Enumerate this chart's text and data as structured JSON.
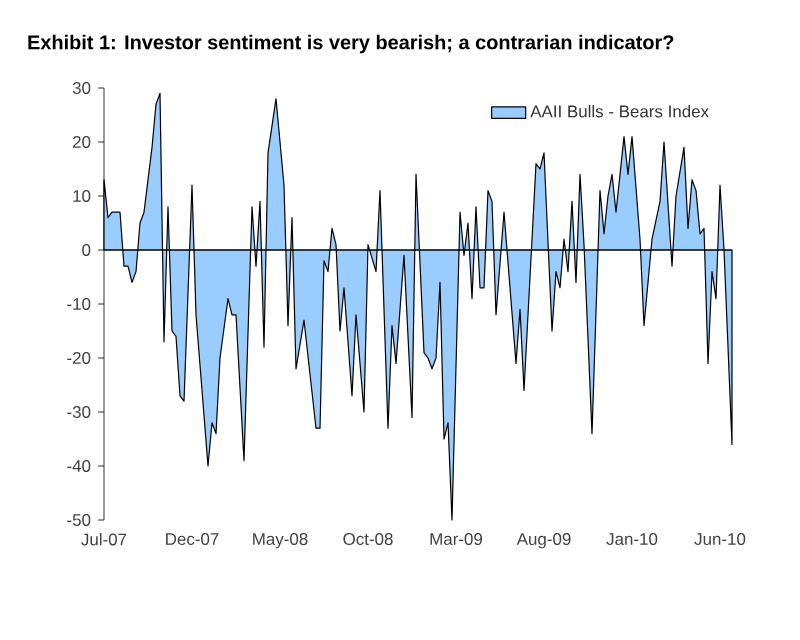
{
  "chart_data": {
    "type": "area",
    "title": "Exhibit 1: Investor sentiment is very bearish; a contrarian indicator?",
    "x": [
      "2007-07-05",
      "2007-07-12",
      "2007-07-19",
      "2007-07-26",
      "2007-08-02",
      "2007-08-09",
      "2007-08-16",
      "2007-08-23",
      "2007-08-30",
      "2007-09-06",
      "2007-09-13",
      "2007-09-27",
      "2007-10-04",
      "2007-10-11",
      "2007-10-18",
      "2007-10-25",
      "2007-11-01",
      "2007-11-08",
      "2007-11-15",
      "2007-11-22",
      "2007-12-06",
      "2007-12-13",
      "2008-01-03",
      "2008-01-10",
      "2008-01-17",
      "2008-01-24",
      "2008-02-07",
      "2008-02-14",
      "2008-02-21",
      "2008-03-06",
      "2008-03-20",
      "2008-03-27",
      "2008-04-03",
      "2008-04-10",
      "2008-04-17",
      "2008-05-01",
      "2008-05-08",
      "2008-05-15",
      "2008-05-22",
      "2008-05-29",
      "2008-06-05",
      "2008-06-19",
      "2008-07-10",
      "2008-07-17",
      "2008-07-24",
      "2008-07-31",
      "2008-08-07",
      "2008-08-14",
      "2008-08-21",
      "2008-08-28",
      "2008-09-11",
      "2008-09-18",
      "2008-10-02",
      "2008-10-09",
      "2008-10-23",
      "2008-10-30",
      "2008-11-13",
      "2008-11-20",
      "2008-11-27",
      "2008-12-11",
      "2008-12-25",
      "2009-01-01",
      "2009-01-15",
      "2009-01-22",
      "2009-01-29",
      "2009-02-05",
      "2009-02-12",
      "2009-02-19",
      "2009-02-26",
      "2009-03-05",
      "2009-03-19",
      "2009-03-26",
      "2009-04-02",
      "2009-04-09",
      "2009-04-16",
      "2009-04-23",
      "2009-04-30",
      "2009-05-07",
      "2009-05-14",
      "2009-05-21",
      "2009-06-04",
      "2009-06-25",
      "2009-07-02",
      "2009-07-09",
      "2009-07-30",
      "2009-08-06",
      "2009-08-13",
      "2009-08-27",
      "2009-09-03",
      "2009-09-10",
      "2009-09-17",
      "2009-09-24",
      "2009-10-01",
      "2009-10-08",
      "2009-10-15",
      "2009-10-22",
      "2009-11-05",
      "2009-11-19",
      "2009-11-26",
      "2009-12-03",
      "2009-12-10",
      "2009-12-17",
      "2009-12-31",
      "2010-01-07",
      "2010-01-14",
      "2010-01-28",
      "2010-02-04",
      "2010-02-18",
      "2010-03-04",
      "2010-03-11",
      "2010-03-25",
      "2010-04-01",
      "2010-04-15",
      "2010-04-22",
      "2010-04-29",
      "2010-05-06",
      "2010-05-13",
      "2010-05-20",
      "2010-05-27",
      "2010-06-03",
      "2010-06-10",
      "2010-06-17",
      "2010-06-24",
      "2010-07-08"
    ],
    "series": [
      {
        "name": "AAII Bulls - Bears Index",
        "color": "#99ccff",
        "values": [
          13,
          6,
          7,
          7,
          7,
          -3,
          -3,
          -6,
          -4,
          5,
          7,
          19,
          27,
          29,
          -17,
          8,
          -15,
          -16,
          -27,
          -28,
          12,
          -12,
          -40,
          -32,
          -34,
          -20,
          -9,
          -12,
          -12,
          -39,
          8,
          -3,
          9,
          -18,
          18,
          28,
          20,
          12,
          -14,
          6,
          -22,
          -13,
          -33,
          -33,
          -2,
          -4,
          4,
          1,
          -15,
          -7,
          -27,
          -12,
          -30,
          1,
          -4,
          11,
          -33,
          -14,
          -21,
          -1,
          -31,
          14,
          -19,
          -20,
          -22,
          -20,
          -6,
          -35,
          -32,
          -50,
          7,
          -1,
          5,
          -9,
          8,
          -7,
          -7,
          11,
          9,
          -12,
          7,
          -21,
          -11,
          -26,
          16,
          15,
          18,
          -15,
          -4,
          -7,
          2,
          -4,
          9,
          -6,
          14,
          1,
          -34,
          11,
          3,
          10,
          14,
          7,
          21,
          14,
          21,
          2,
          -14,
          2,
          9,
          20,
          -3,
          10,
          19,
          4,
          13,
          11,
          3,
          4,
          -21,
          -4,
          -9,
          12,
          0,
          -36
        ]
      }
    ],
    "xlim": [
      "2007-07-05",
      "2010-07-08"
    ],
    "xticks": [
      {
        "value": "2007-07-05",
        "label": "Jul-07"
      },
      {
        "value": "2007-12-06",
        "label": "Dec-07"
      },
      {
        "value": "2008-05-08",
        "label": "May-08"
      },
      {
        "value": "2008-10-09",
        "label": "Oct-08"
      },
      {
        "value": "2009-03-12",
        "label": "Mar-09"
      },
      {
        "value": "2009-08-13",
        "label": "Aug-09"
      },
      {
        "value": "2010-01-14",
        "label": "Jan-10"
      },
      {
        "value": "2010-06-17",
        "label": "Jun-10"
      }
    ],
    "ylim": [
      -50,
      30
    ],
    "yticks": [
      -50,
      -40,
      -30,
      -20,
      -10,
      0,
      10,
      20,
      30
    ],
    "ref_lines": [
      {
        "axis": "y",
        "value": 0,
        "color": "#000000"
      }
    ],
    "legend": "top right",
    "grid": false
  }
}
